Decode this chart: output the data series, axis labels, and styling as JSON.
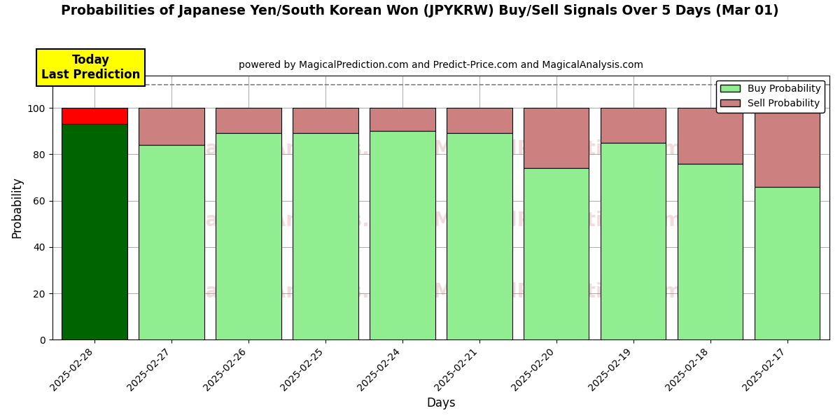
{
  "title": "Probabilities of Japanese Yen/South Korean Won (JPYKRW) Buy/Sell Signals Over 5 Days (Mar 01)",
  "subtitle": "powered by MagicalPrediction.com and Predict-Price.com and MagicalAnalysis.com",
  "xlabel": "Days",
  "ylabel": "Probability",
  "categories": [
    "2025-02-28",
    "2025-02-27",
    "2025-02-26",
    "2025-02-25",
    "2025-02-24",
    "2025-02-21",
    "2025-02-20",
    "2025-02-19",
    "2025-02-18",
    "2025-02-17"
  ],
  "buy_values": [
    93,
    84,
    89,
    89,
    90,
    89,
    74,
    85,
    76,
    66
  ],
  "sell_values": [
    7,
    16,
    11,
    11,
    10,
    11,
    26,
    15,
    24,
    34
  ],
  "today_bar_buy_color": "#006400",
  "today_bar_sell_color": "#ff0000",
  "other_bar_buy_color": "#90EE90",
  "other_bar_sell_color": "#CD8080",
  "bar_edge_color": "#000000",
  "today_annotation_text": "Today\nLast Prediction",
  "today_annotation_bg": "#ffff00",
  "legend_buy_label": "Buy Probability",
  "legend_sell_label": "Sell Probability",
  "ylim": [
    0,
    114
  ],
  "dashed_line_y": 110,
  "background_color": "#ffffff",
  "grid_color": "#aaaaaa"
}
